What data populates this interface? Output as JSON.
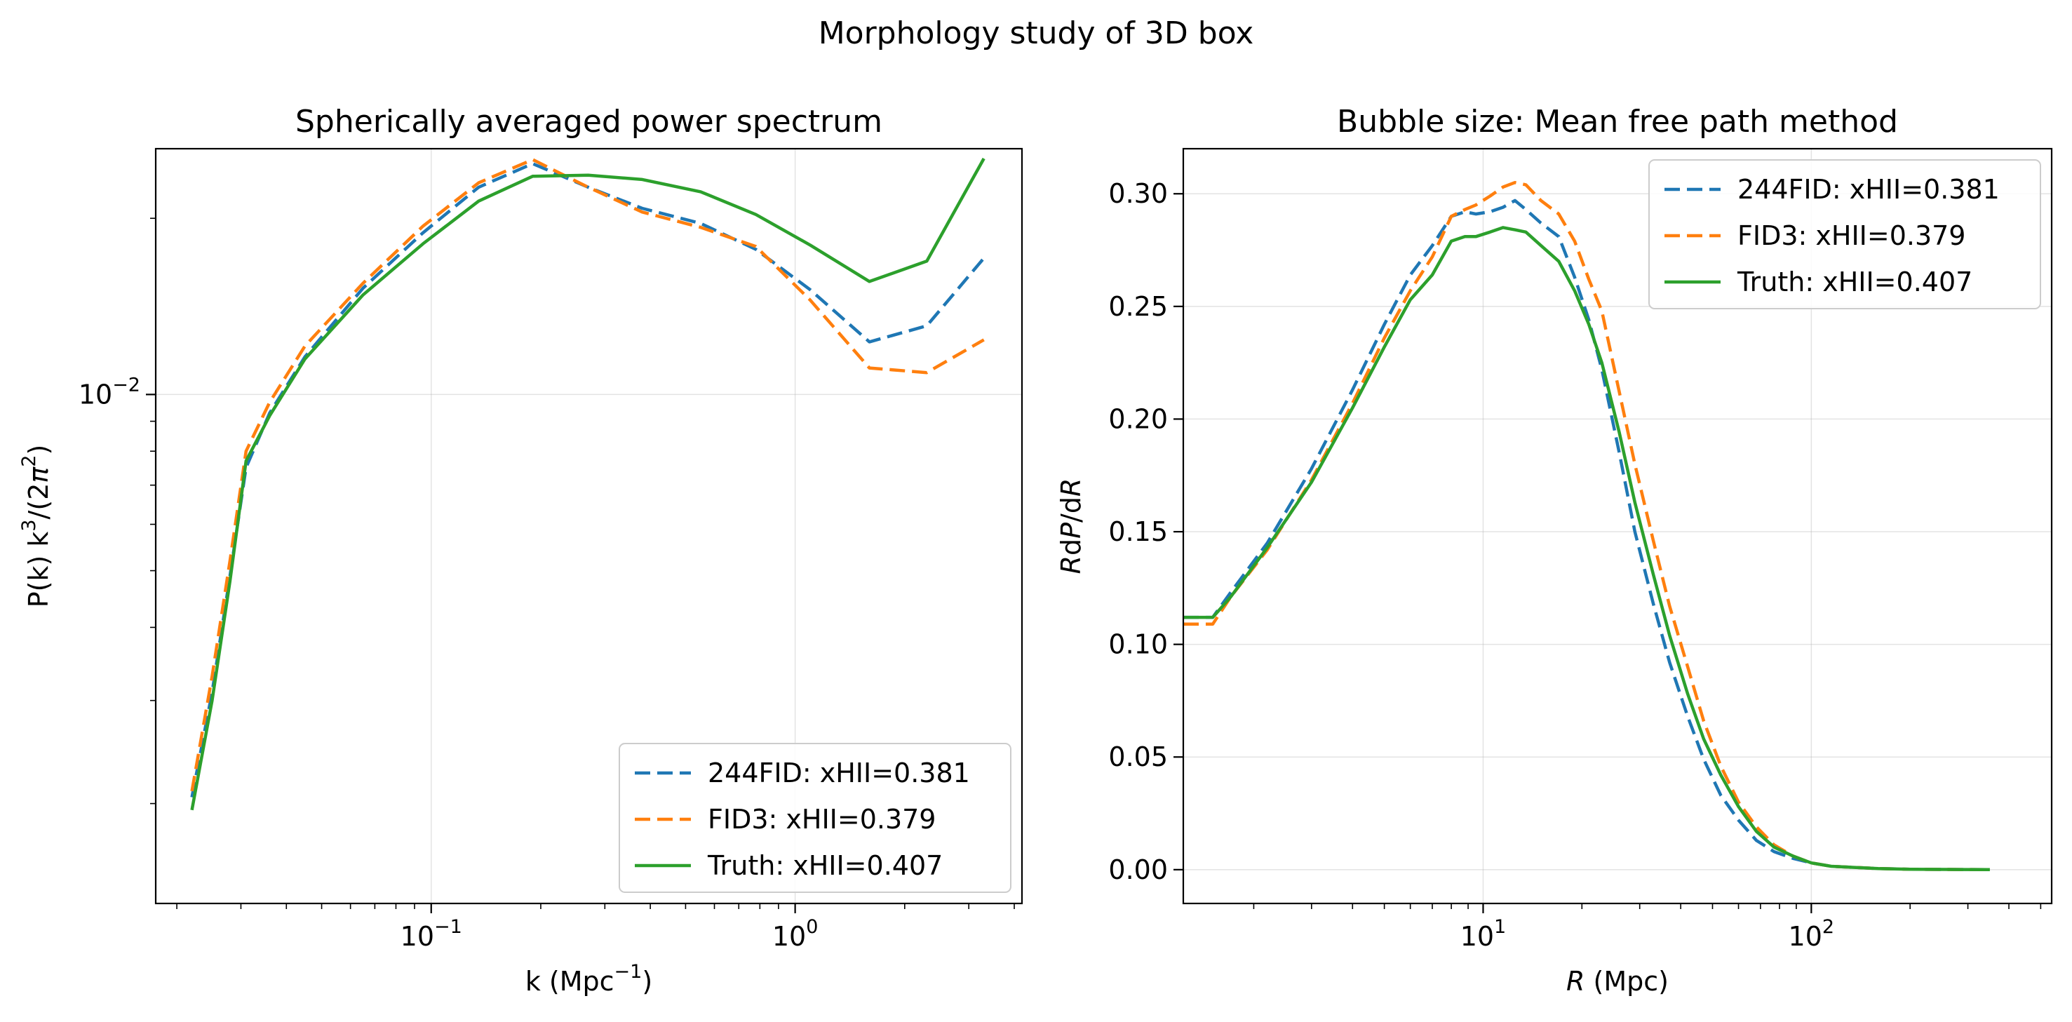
{
  "figure": {
    "suptitle": "Morphology study of 3D box"
  },
  "colors": {
    "fid244": "#1f77b4",
    "fid3": "#ff7f0e",
    "truth": "#2ca02c"
  },
  "chart_data": [
    {
      "type": "line",
      "title": "Spherically averaged power spectrum",
      "xlabel": "k (Mpc⁻¹)",
      "ylabel": "P(k) k³/(2π²)",
      "xscale": "log",
      "yscale": "log",
      "xlim": [
        0.0175,
        4.2
      ],
      "ylim": [
        0.00135,
        0.0263
      ],
      "xticks": [
        {
          "value": 0.1,
          "base": "10",
          "exp": "−1"
        },
        {
          "value": 1,
          "base": "10",
          "exp": "0"
        }
      ],
      "yticks": [
        {
          "value": 0.01,
          "base": "10",
          "exp": "−2"
        }
      ],
      "grid": true,
      "legend": "lower-right",
      "x": [
        0.022,
        0.025,
        0.028,
        0.031,
        0.036,
        0.045,
        0.065,
        0.095,
        0.135,
        0.19,
        0.27,
        0.38,
        0.55,
        0.78,
        1.1,
        1.6,
        2.3,
        3.3
      ],
      "series": [
        {
          "name": "244FID: xHII=0.381",
          "color": "fid244",
          "dash": "dashed",
          "values": [
            0.00205,
            0.0031,
            0.0049,
            0.0075,
            0.0093,
            0.0116,
            0.0152,
            0.0189,
            0.0226,
            0.0248,
            0.0226,
            0.0208,
            0.0196,
            0.0177,
            0.0151,
            0.0123,
            0.0131,
            0.0171
          ]
        },
        {
          "name": "FID3: xHII=0.379",
          "color": "fid3",
          "dash": "dashed",
          "values": [
            0.0021,
            0.0033,
            0.0052,
            0.008,
            0.0097,
            0.0121,
            0.0155,
            0.0194,
            0.023,
            0.0252,
            0.0226,
            0.0205,
            0.0193,
            0.0179,
            0.0145,
            0.0111,
            0.0109,
            0.0124
          ]
        },
        {
          "name": "Truth: xHII=0.407",
          "color": "truth",
          "dash": "solid",
          "values": [
            0.00195,
            0.003,
            0.0048,
            0.0077,
            0.0092,
            0.0115,
            0.0148,
            0.0181,
            0.0214,
            0.0236,
            0.0237,
            0.0233,
            0.0222,
            0.0203,
            0.018,
            0.0156,
            0.0169,
            0.0253
          ]
        }
      ]
    },
    {
      "type": "line",
      "title": "Bubble size: Mean free path method",
      "xlabel": "R (Mpc)",
      "ylabel": "RdP/dR",
      "xscale": "log",
      "yscale": "linear",
      "xlim": [
        1.22,
        540
      ],
      "ylim": [
        -0.015,
        0.32
      ],
      "xticks": [
        {
          "value": 10,
          "base": "10",
          "exp": "1"
        },
        {
          "value": 100,
          "base": "10",
          "exp": "2"
        }
      ],
      "yticks": [
        "0.00",
        "0.05",
        "0.10",
        "0.15",
        "0.20",
        "0.25",
        "0.30"
      ],
      "grid": true,
      "legend": "upper-right",
      "series": [
        {
          "name": "244FID: xHII=0.381",
          "color": "fid244",
          "dash": "dashed",
          "x": [
            1.22,
            1.5,
            1.7,
            2.2,
            3,
            4,
            5,
            6,
            7,
            8,
            8.8,
            9.5,
            10.5,
            11.5,
            12.5,
            13.5,
            15,
            17,
            19,
            21,
            23,
            26,
            29,
            33,
            37,
            42,
            47,
            53,
            60,
            68,
            77,
            88,
            100,
            115,
            135,
            160,
            200,
            260,
            350
          ],
          "values": [
            0.112,
            0.112,
            0.123,
            0.145,
            0.178,
            0.213,
            0.242,
            0.264,
            0.277,
            0.29,
            0.292,
            0.291,
            0.292,
            0.294,
            0.297,
            0.293,
            0.287,
            0.281,
            0.263,
            0.244,
            0.222,
            0.185,
            0.15,
            0.118,
            0.092,
            0.068,
            0.049,
            0.033,
            0.022,
            0.013,
            0.008,
            0.005,
            0.003,
            0.0015,
            0.001,
            0.0005,
            0.0002,
            0.0001,
            0.0
          ]
        },
        {
          "name": "FID3: xHII=0.379",
          "color": "fid3",
          "dash": "dashed",
          "x": [
            1.22,
            1.5,
            1.7,
            2.2,
            3,
            4,
            5,
            6,
            7,
            8,
            8.8,
            9.5,
            10.5,
            11.5,
            12.5,
            13.5,
            15,
            17,
            19,
            21,
            23,
            26,
            29,
            33,
            37,
            42,
            47,
            53,
            60,
            68,
            77,
            88,
            100,
            115,
            135,
            160,
            200,
            260,
            350
          ],
          "values": [
            0.109,
            0.109,
            0.121,
            0.142,
            0.173,
            0.207,
            0.236,
            0.257,
            0.272,
            0.29,
            0.293,
            0.295,
            0.299,
            0.303,
            0.305,
            0.304,
            0.297,
            0.291,
            0.279,
            0.262,
            0.248,
            0.212,
            0.18,
            0.146,
            0.117,
            0.09,
            0.066,
            0.046,
            0.03,
            0.019,
            0.011,
            0.006,
            0.003,
            0.0015,
            0.001,
            0.0005,
            0.0002,
            0.0001,
            0.0
          ]
        },
        {
          "name": "Truth: xHII=0.407",
          "color": "truth",
          "dash": "solid",
          "x": [
            1.22,
            1.5,
            1.7,
            2.2,
            3,
            4,
            5,
            6,
            7,
            8,
            8.8,
            9.5,
            10.5,
            11.5,
            12.5,
            13.5,
            15,
            17,
            19,
            21,
            23,
            26,
            29,
            33,
            37,
            42,
            47,
            53,
            60,
            68,
            77,
            88,
            100,
            115,
            135,
            160,
            200,
            260,
            350
          ],
          "values": [
            0.112,
            0.112,
            0.121,
            0.143,
            0.172,
            0.205,
            0.232,
            0.253,
            0.264,
            0.279,
            0.281,
            0.281,
            0.283,
            0.285,
            0.284,
            0.283,
            0.277,
            0.27,
            0.257,
            0.242,
            0.225,
            0.194,
            0.163,
            0.131,
            0.104,
            0.078,
            0.058,
            0.042,
            0.028,
            0.017,
            0.01,
            0.006,
            0.003,
            0.0015,
            0.001,
            0.0005,
            0.0002,
            0.0001,
            0.0
          ]
        }
      ]
    }
  ]
}
